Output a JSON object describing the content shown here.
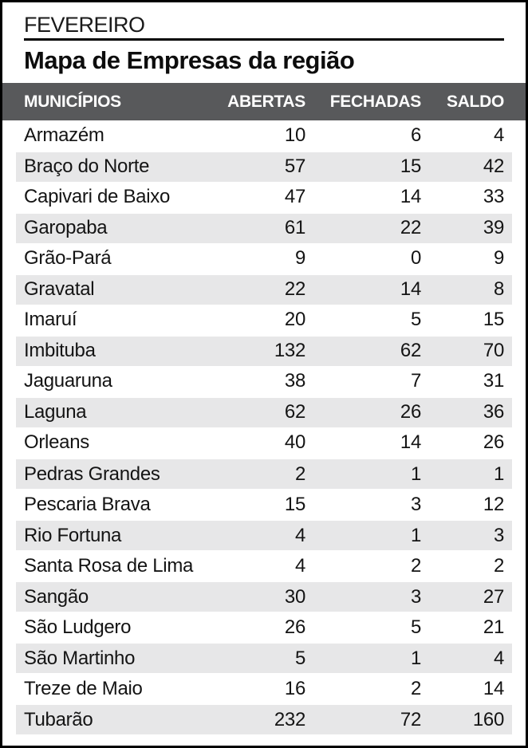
{
  "header": {
    "month": "FEVEREIRO",
    "title": "Mapa de Empresas da região"
  },
  "chart_data": {
    "type": "table",
    "title": "Mapa de Empresas da região",
    "period": "FEVEREIRO",
    "columns": [
      "MUNICÍPIOS",
      "ABERTAS",
      "FECHADAS",
      "SALDO"
    ],
    "rows": [
      [
        "Armazém",
        10,
        6,
        4
      ],
      [
        "Braço do Norte",
        57,
        15,
        42
      ],
      [
        "Capivari de Baixo",
        47,
        14,
        33
      ],
      [
        "Garopaba",
        61,
        22,
        39
      ],
      [
        "Grão-Pará",
        9,
        0,
        9
      ],
      [
        "Gravatal",
        22,
        14,
        8
      ],
      [
        "Imaruí",
        20,
        5,
        15
      ],
      [
        "Imbituba",
        132,
        62,
        70
      ],
      [
        "Jaguaruna",
        38,
        7,
        31
      ],
      [
        "Laguna",
        62,
        26,
        36
      ],
      [
        "Orleans",
        40,
        14,
        26
      ],
      [
        "Pedras Grandes",
        2,
        1,
        1
      ],
      [
        "Pescaria Brava",
        15,
        3,
        12
      ],
      [
        "Rio Fortuna",
        4,
        1,
        3
      ],
      [
        "Santa Rosa de Lima",
        4,
        2,
        2
      ],
      [
        "Sangão",
        30,
        3,
        27
      ],
      [
        "São Ludgero",
        26,
        5,
        21
      ],
      [
        "São Martinho",
        5,
        1,
        4
      ],
      [
        "Treze de Maio",
        16,
        2,
        14
      ],
      [
        "Tubarão",
        232,
        72,
        160
      ]
    ],
    "layout": {
      "striped_rows": true,
      "stripe_pattern": "even rows shaded",
      "number_alignment": "right"
    }
  },
  "colors": {
    "frame": "#000000",
    "header_bar": "#58595B",
    "header_text": "#FFFFFF",
    "row_stripe": "#E7E7E8",
    "text": "#141414"
  }
}
